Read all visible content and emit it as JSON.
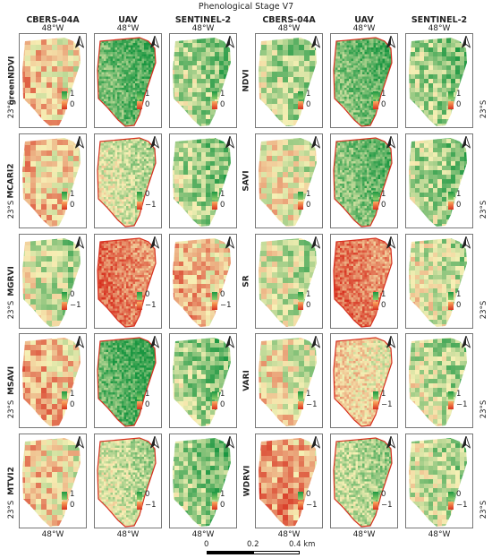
{
  "title": "Phenological Stage V7",
  "sensors": [
    "CBERS-04A",
    "UAV",
    "SENTINEL-2",
    "CBERS-04A",
    "UAV",
    "SENTINEL-2"
  ],
  "longitude": "48°W",
  "latitude": "23°S",
  "rows": [
    {
      "left": {
        "index": "greenNDVI",
        "legends": [
          [
            "1",
            "0"
          ],
          [
            "1",
            "0"
          ],
          [
            "1",
            "0"
          ]
        ]
      },
      "right": {
        "index": "NDVI",
        "legends": [
          [
            "1",
            "0"
          ],
          [
            "1",
            "0"
          ],
          [
            "1",
            "0"
          ]
        ]
      }
    },
    {
      "left": {
        "index": "MCARI2",
        "legends": [
          [
            "1",
            "0"
          ],
          [
            "0",
            "−1"
          ],
          [
            "1",
            "0"
          ]
        ]
      },
      "right": {
        "index": "SAVI",
        "legends": [
          [
            "1",
            "0"
          ],
          [
            "1",
            "0"
          ],
          [
            "1",
            "0"
          ]
        ]
      }
    },
    {
      "left": {
        "index": "MGRVI",
        "legends": [
          [
            "0",
            "−1"
          ],
          [
            "0",
            "−1"
          ],
          [
            "0",
            "−1"
          ]
        ]
      },
      "right": {
        "index": "SR",
        "legends": [
          [
            "1",
            "0"
          ],
          [
            "1",
            "0"
          ],
          [
            "1",
            "0"
          ]
        ]
      }
    },
    {
      "left": {
        "index": "MSAVI",
        "legends": [
          [
            "1",
            "0"
          ],
          [
            "1",
            "0"
          ],
          [
            "1",
            "0"
          ]
        ]
      },
      "right": {
        "index": "VARI",
        "legends": [
          [
            "1",
            "−1"
          ],
          [
            "1",
            "−1"
          ],
          [
            "1",
            "−1"
          ]
        ]
      }
    },
    {
      "left": {
        "index": "MTVI2",
        "legends": [
          [
            "1",
            "0"
          ],
          [
            "0",
            "−1"
          ],
          [
            "1",
            "0"
          ]
        ]
      },
      "right": {
        "index": "WDRVI",
        "legends": [
          [
            "0",
            "−1"
          ],
          [
            "0",
            "−1"
          ],
          [
            "0",
            "−1"
          ]
        ]
      }
    }
  ],
  "scalebar": {
    "labels": [
      "0",
      "0.2",
      "0.4 km"
    ]
  },
  "colors": {
    "high": "#1a9641",
    "mid": "#f7f0b5",
    "low": "#d7301f"
  }
}
